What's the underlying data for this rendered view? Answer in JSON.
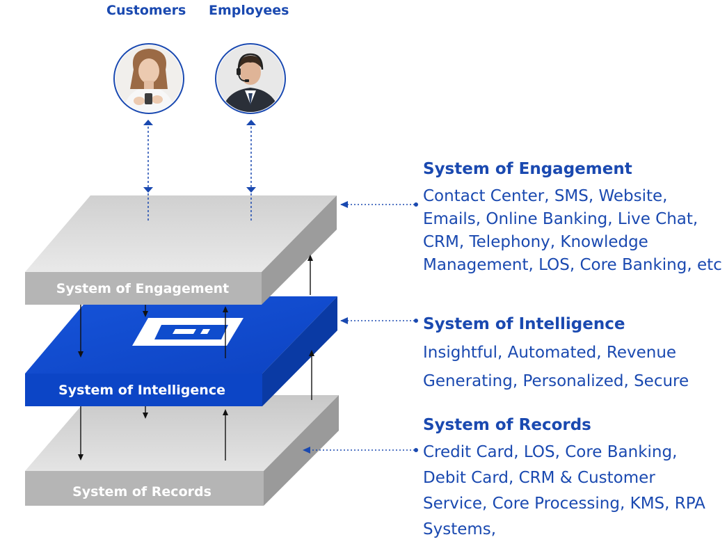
{
  "personas": {
    "customers": {
      "label": "Customers",
      "icon": "woman-with-phone-avatar"
    },
    "employees": {
      "label": "Employees",
      "icon": "man-with-headset-avatar"
    }
  },
  "layers": {
    "engagement": {
      "label": "System of Engagement",
      "color": "#b5b5b5"
    },
    "intelligence": {
      "label": "System of Intelligence",
      "color": "#0c45c6",
      "icon": "chat-card-logo-icon"
    },
    "records": {
      "label": "System of Records",
      "color": "#b5b5b5"
    }
  },
  "descriptions": {
    "engagement": {
      "title": "System of Engagement",
      "text": "Contact Center, SMS, Website, Emails, Online Banking, Live Chat, CRM, Telephony, Knowledge Management, LOS, Core Banking, etc"
    },
    "intelligence": {
      "title": "System of Intelligence",
      "text": "Insightful, Automated, Revenue Generating, Personalized, Secure"
    },
    "records": {
      "title": "System of Records",
      "text": "Credit Card, LOS, Core Banking, Debit Card, CRM & Customer Service, Core Processing, KMS, RPA Systems,"
    }
  },
  "colors": {
    "accent": "#1a49b0",
    "arrow": "#111111",
    "slab_gray": "#b5b5b5",
    "slab_blue": "#0c45c6"
  }
}
